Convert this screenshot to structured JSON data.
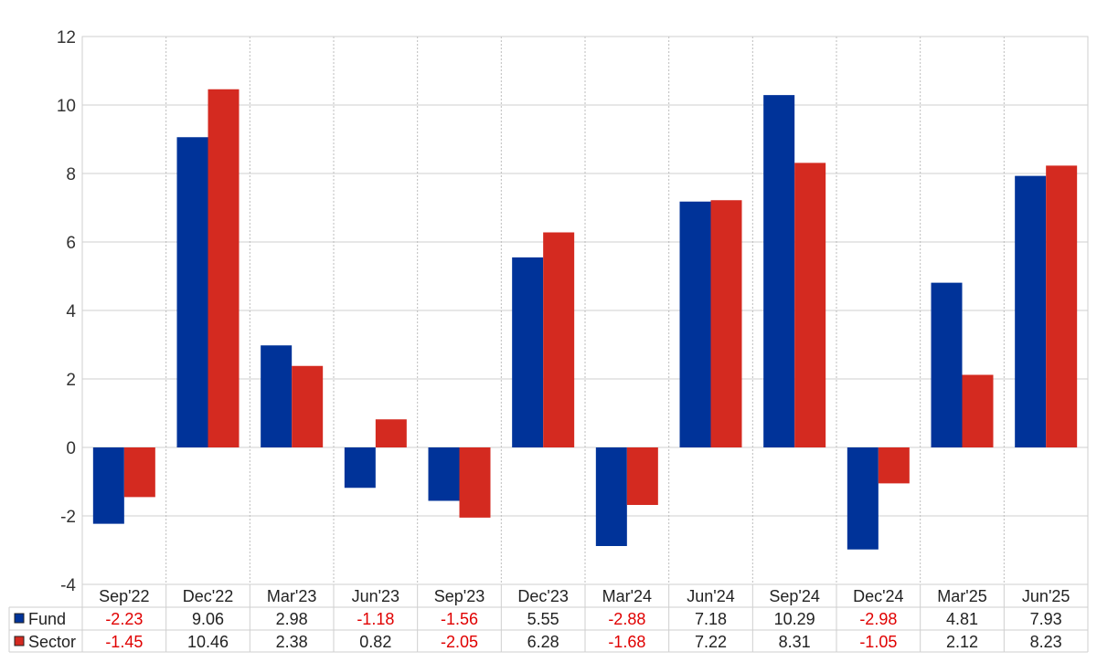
{
  "chart_data": {
    "type": "bar",
    "categories": [
      "Sep'22",
      "Dec'22",
      "Mar'23",
      "Jun'23",
      "Sep'23",
      "Dec'23",
      "Mar'24",
      "Jun'24",
      "Sep'24",
      "Dec'24",
      "Mar'25",
      "Jun'25"
    ],
    "series": [
      {
        "name": "Fund",
        "color": "#003399",
        "values": [
          -2.23,
          9.06,
          2.98,
          -1.18,
          -1.56,
          5.55,
          -2.88,
          7.18,
          10.29,
          -2.98,
          4.81,
          7.93
        ],
        "labels": [
          "-2.23",
          "9.06",
          "2.98",
          "-1.18",
          "-1.56",
          "5.55",
          "-2.88",
          "7.18",
          "10.29",
          "-2.98",
          "4.81",
          "7.93"
        ]
      },
      {
        "name": "Sector",
        "color": "#d42a20",
        "values": [
          -1.45,
          10.46,
          2.38,
          0.82,
          -2.05,
          6.28,
          -1.68,
          7.22,
          8.31,
          -1.05,
          2.12,
          8.23
        ],
        "labels": [
          "-1.45",
          "10.46",
          "2.38",
          "0.82",
          "-2.05",
          "6.28",
          "-1.68",
          "7.22",
          "8.31",
          "-1.05",
          "2.12",
          "8.23"
        ]
      }
    ],
    "ylim": [
      -4,
      12
    ],
    "yticks": [
      "-4",
      "-2",
      "0",
      "2",
      "4",
      "6",
      "8",
      "10",
      "12"
    ],
    "grid": true,
    "legend": "data-table-below",
    "negative_value_color": "#e00000"
  }
}
